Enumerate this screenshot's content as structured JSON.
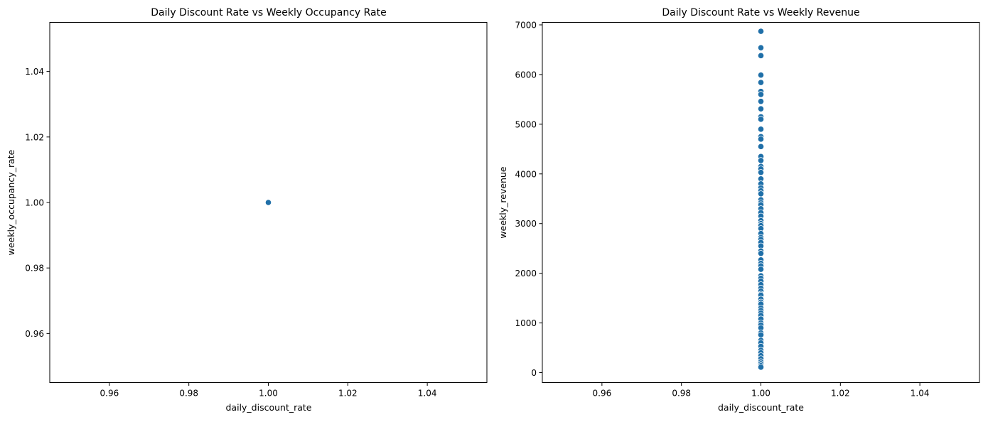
{
  "chart_data": [
    {
      "type": "scatter",
      "title": "Daily Discount Rate vs Weekly Occupancy Rate",
      "xlabel": "daily_discount_rate",
      "ylabel": "weekly_occupancy_rate",
      "xlim": [
        0.945,
        1.055
      ],
      "ylim": [
        0.945,
        1.055
      ],
      "xticks": [
        0.96,
        0.98,
        1.0,
        1.02,
        1.04
      ],
      "xtick_labels": [
        "0.96",
        "0.98",
        "1.00",
        "1.02",
        "1.04"
      ],
      "yticks": [
        0.96,
        0.98,
        1.0,
        1.02,
        1.04
      ],
      "ytick_labels": [
        "0.96",
        "0.98",
        "1.00",
        "1.02",
        "1.04"
      ],
      "grid": false,
      "color": "#1f6fa8",
      "points": [
        {
          "x": 1.0,
          "y": 1.0
        }
      ]
    },
    {
      "type": "scatter",
      "title": "Daily Discount Rate vs Weekly Revenue",
      "xlabel": "daily_discount_rate",
      "ylabel": "weekly_revenue",
      "xlim": [
        0.945,
        1.055
      ],
      "ylim": [
        -200,
        7050
      ],
      "xticks": [
        0.96,
        0.98,
        1.0,
        1.02,
        1.04
      ],
      "xtick_labels": [
        "0.96",
        "0.98",
        "1.00",
        "1.02",
        "1.04"
      ],
      "yticks": [
        0,
        1000,
        2000,
        3000,
        4000,
        5000,
        6000,
        7000
      ],
      "ytick_labels": [
        "0",
        "1000",
        "2000",
        "3000",
        "4000",
        "5000",
        "6000",
        "7000"
      ],
      "grid": false,
      "color": "#1f6fa8",
      "points": [
        {
          "x": 1.0,
          "y": 6870
        },
        {
          "x": 1.0,
          "y": 6540
        },
        {
          "x": 1.0,
          "y": 6380
        },
        {
          "x": 1.0,
          "y": 5990
        },
        {
          "x": 1.0,
          "y": 5840
        },
        {
          "x": 1.0,
          "y": 5660
        },
        {
          "x": 1.0,
          "y": 5600
        },
        {
          "x": 1.0,
          "y": 5460
        },
        {
          "x": 1.0,
          "y": 5310
        },
        {
          "x": 1.0,
          "y": 5150
        },
        {
          "x": 1.0,
          "y": 5100
        },
        {
          "x": 1.0,
          "y": 4900
        },
        {
          "x": 1.0,
          "y": 4750
        },
        {
          "x": 1.0,
          "y": 4700
        },
        {
          "x": 1.0,
          "y": 4550
        },
        {
          "x": 1.0,
          "y": 4350
        },
        {
          "x": 1.0,
          "y": 4270
        },
        {
          "x": 1.0,
          "y": 4150
        },
        {
          "x": 1.0,
          "y": 4100
        },
        {
          "x": 1.0,
          "y": 4030
        },
        {
          "x": 1.0,
          "y": 3900
        },
        {
          "x": 1.0,
          "y": 3800
        },
        {
          "x": 1.0,
          "y": 3720
        },
        {
          "x": 1.0,
          "y": 3660
        },
        {
          "x": 1.0,
          "y": 3600
        },
        {
          "x": 1.0,
          "y": 3480
        },
        {
          "x": 1.0,
          "y": 3420
        },
        {
          "x": 1.0,
          "y": 3380
        },
        {
          "x": 1.0,
          "y": 3300
        },
        {
          "x": 1.0,
          "y": 3220
        },
        {
          "x": 1.0,
          "y": 3150
        },
        {
          "x": 1.0,
          "y": 3060
        },
        {
          "x": 1.0,
          "y": 3000
        },
        {
          "x": 1.0,
          "y": 2960
        },
        {
          "x": 1.0,
          "y": 2900
        },
        {
          "x": 1.0,
          "y": 2800
        },
        {
          "x": 1.0,
          "y": 2720
        },
        {
          "x": 1.0,
          "y": 2680
        },
        {
          "x": 1.0,
          "y": 2620
        },
        {
          "x": 1.0,
          "y": 2550
        },
        {
          "x": 1.0,
          "y": 2450
        },
        {
          "x": 1.0,
          "y": 2400
        },
        {
          "x": 1.0,
          "y": 2270
        },
        {
          "x": 1.0,
          "y": 2200
        },
        {
          "x": 1.0,
          "y": 2150
        },
        {
          "x": 1.0,
          "y": 2080
        },
        {
          "x": 1.0,
          "y": 1950
        },
        {
          "x": 1.0,
          "y": 1900
        },
        {
          "x": 1.0,
          "y": 1840
        },
        {
          "x": 1.0,
          "y": 1770
        },
        {
          "x": 1.0,
          "y": 1700
        },
        {
          "x": 1.0,
          "y": 1640
        },
        {
          "x": 1.0,
          "y": 1580
        },
        {
          "x": 1.0,
          "y": 1560
        },
        {
          "x": 1.0,
          "y": 1480
        },
        {
          "x": 1.0,
          "y": 1420
        },
        {
          "x": 1.0,
          "y": 1380
        },
        {
          "x": 1.0,
          "y": 1300
        },
        {
          "x": 1.0,
          "y": 1250
        },
        {
          "x": 1.0,
          "y": 1200
        },
        {
          "x": 1.0,
          "y": 1150
        },
        {
          "x": 1.0,
          "y": 1080
        },
        {
          "x": 1.0,
          "y": 1000
        },
        {
          "x": 1.0,
          "y": 960
        },
        {
          "x": 1.0,
          "y": 900
        },
        {
          "x": 1.0,
          "y": 800
        },
        {
          "x": 1.0,
          "y": 760
        },
        {
          "x": 1.0,
          "y": 650
        },
        {
          "x": 1.0,
          "y": 600
        },
        {
          "x": 1.0,
          "y": 530
        },
        {
          "x": 1.0,
          "y": 450
        },
        {
          "x": 1.0,
          "y": 400
        },
        {
          "x": 1.0,
          "y": 340
        },
        {
          "x": 1.0,
          "y": 280
        },
        {
          "x": 1.0,
          "y": 220
        },
        {
          "x": 1.0,
          "y": 180
        },
        {
          "x": 1.0,
          "y": 140
        },
        {
          "x": 1.0,
          "y": 110
        }
      ]
    }
  ]
}
